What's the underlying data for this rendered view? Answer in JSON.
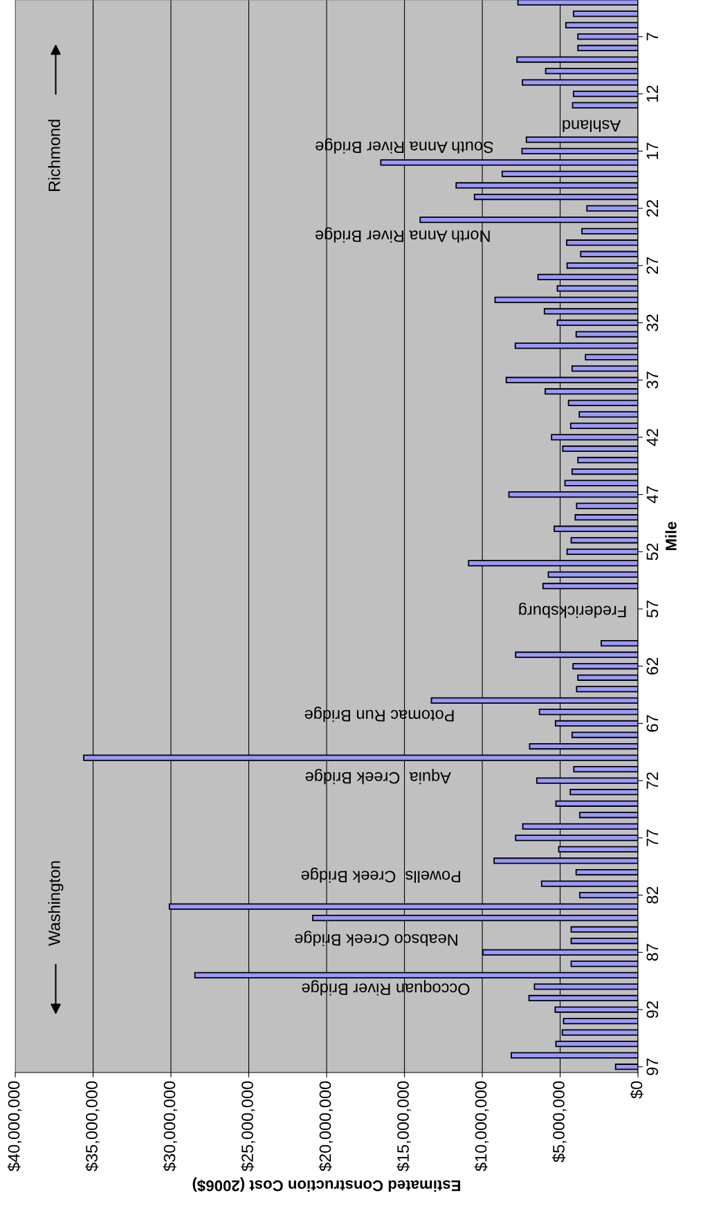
{
  "chart_data": {
    "type": "bar",
    "orientation": "horizontal",
    "xlabel": "Estimated Construction Cost (2006$)",
    "ylabel": "Mile",
    "x": [
      97,
      96,
      95,
      94,
      93,
      92,
      91,
      90,
      89,
      88,
      87,
      86,
      85,
      84,
      83,
      82,
      81,
      80,
      79,
      78,
      77,
      76,
      75,
      74,
      73,
      72,
      71,
      70,
      69,
      68,
      67,
      66,
      65,
      64,
      63,
      62,
      61,
      60,
      59,
      58,
      57,
      56,
      55,
      54,
      53,
      52,
      51,
      50,
      49,
      48,
      47,
      46,
      45,
      44,
      43,
      42,
      41,
      40,
      39,
      38,
      37,
      36,
      35,
      34,
      33,
      32,
      31,
      30,
      29,
      28,
      27,
      26,
      25,
      24,
      23,
      22,
      21,
      20,
      19,
      18,
      17,
      16,
      15,
      14,
      13,
      12,
      11,
      10,
      9,
      8,
      7,
      6,
      5,
      4
    ],
    "values": [
      1440000,
      8140000,
      5270000,
      4860000,
      4780000,
      5320000,
      7000000,
      6650000,
      28460000,
      4290000,
      9960000,
      4290000,
      4290000,
      20890000,
      30100000,
      3740000,
      6190000,
      3970000,
      9240000,
      5090000,
      7860000,
      7400000,
      3740000,
      5270000,
      4350000,
      6500000,
      4120000,
      35600000,
      6960000,
      4230000,
      5300000,
      6330000,
      13270000,
      3940000,
      3860000,
      4170000,
      7860000,
      2360000,
      null,
      null,
      null,
      null,
      6100000,
      5760000,
      10880000,
      4550000,
      4290000,
      5380000,
      4030000,
      3940000,
      8290000,
      4690000,
      4230000,
      3860000,
      4830000,
      5550000,
      4320000,
      3770000,
      4460000,
      5960000,
      8460000,
      4230000,
      3370000,
      7880000,
      3970000,
      5180000,
      6010000,
      9180000,
      5180000,
      6420000,
      4550000,
      3680000,
      4580000,
      3600000,
      13990000,
      3280000,
      10500000,
      11680000,
      8720000,
      16520000,
      7450000,
      7170000,
      null,
      null,
      4200000,
      4140000,
      7420000,
      5930000,
      7770000,
      3860000,
      3860000,
      4630000,
      4140000,
      7710000
    ],
    "color": "#9999ff",
    "xlim": [
      40000000,
      0
    ],
    "xticks": [
      {
        "value": 40000000,
        "label": "$40,000,000"
      },
      {
        "value": 35000000,
        "label": "$35,000,000"
      },
      {
        "value": 30000000,
        "label": "$30,000,000"
      },
      {
        "value": 25000000,
        "label": "$25,000,000"
      },
      {
        "value": 20000000,
        "label": "$20,000,000"
      },
      {
        "value": 15000000,
        "label": "$15,000,000"
      },
      {
        "value": 10000000,
        "label": "$10,000,000"
      },
      {
        "value": 5000000,
        "label": "$5,000,000"
      },
      {
        "value": 0,
        "label": "$0"
      }
    ],
    "ylim": [
      97.5,
      3.8
    ],
    "yticks": [
      97,
      92,
      87,
      82,
      77,
      72,
      67,
      62,
      57,
      52,
      47,
      42,
      37,
      32,
      27,
      22,
      17,
      12,
      7
    ],
    "grid": "x",
    "annotations": [
      "Occoquan River Bridge",
      "Neabsco Creek Bridge",
      "Powells  Creek Bridge",
      "Aquia  Creek Bridge",
      "Potomac Run Bridge",
      "Fredericksburg",
      "North Anna River Bridge",
      "South Anna River Bridge",
      "Ashland",
      "Washington",
      "Richmond"
    ]
  }
}
